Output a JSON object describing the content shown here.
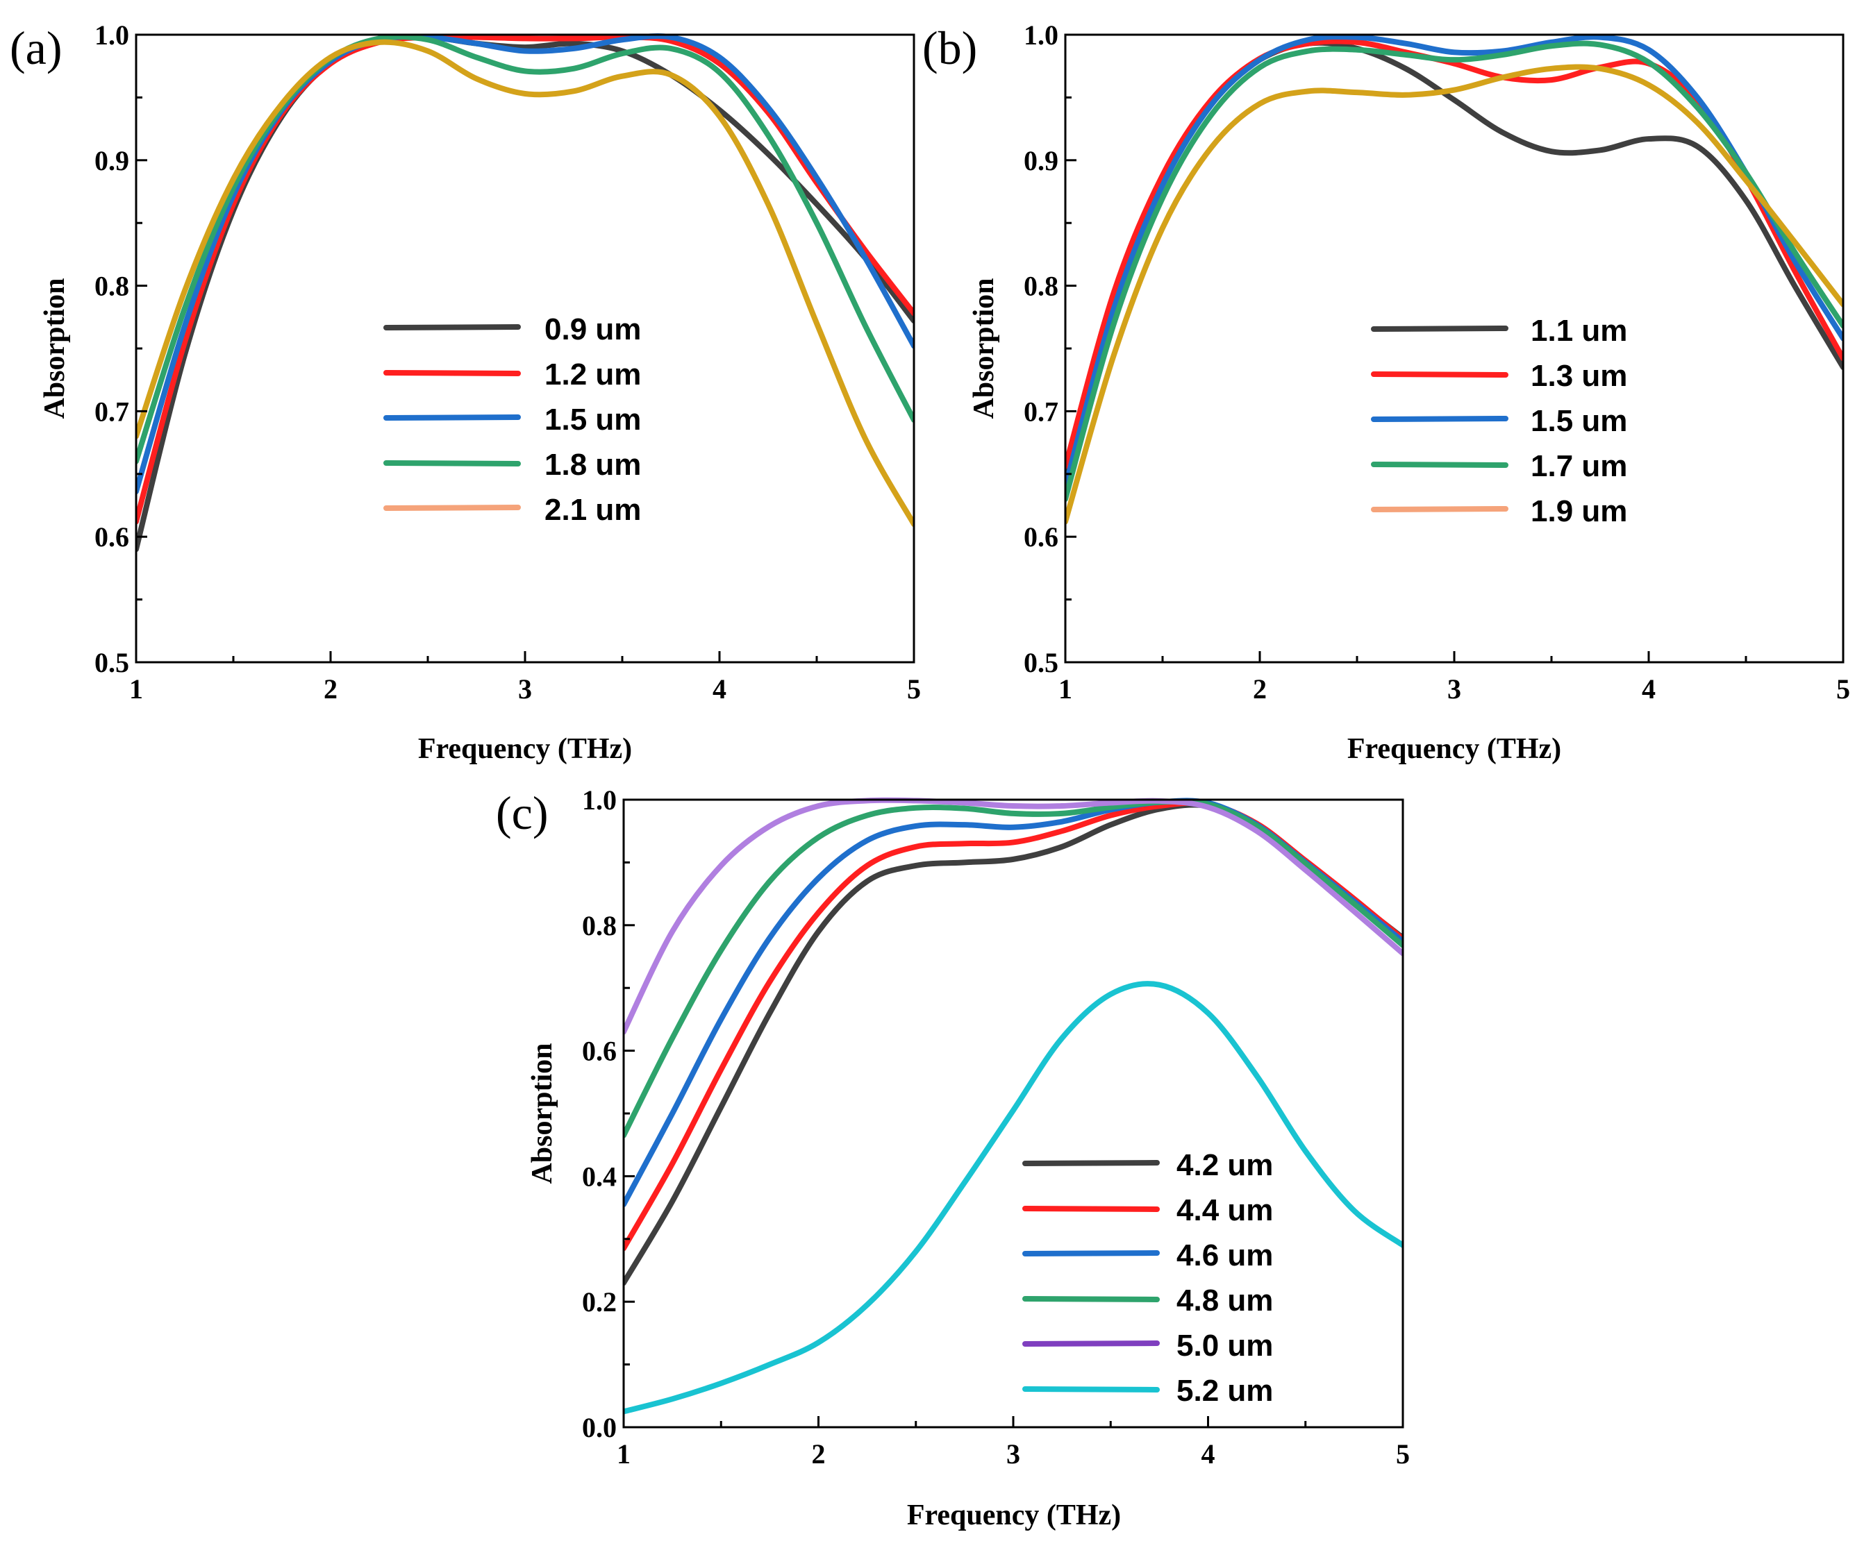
{
  "chart_data": [
    {
      "type": "line",
      "panel_label": "(a)",
      "xlabel": "Frequency (THz)",
      "ylabel": "Absorption",
      "xlim": [
        1,
        5
      ],
      "ylim": [
        0.5,
        1.0
      ],
      "xticks": [
        "1",
        "2",
        "3",
        "4",
        "5"
      ],
      "yticks": [
        "0.5",
        "0.6",
        "0.7",
        "0.8",
        "0.9",
        "1.0"
      ],
      "legend_position": "center",
      "series": [
        {
          "name": "0.9 um",
          "color": "#3f3f3f",
          "x": [
            1.0,
            1.25,
            1.5,
            1.75,
            2.0,
            2.25,
            2.5,
            2.75,
            3.0,
            3.25,
            3.5,
            3.75,
            4.0,
            4.25,
            4.5,
            4.75,
            5.0
          ],
          "y": [
            0.59,
            0.745,
            0.86,
            0.935,
            0.978,
            0.995,
            0.998,
            0.993,
            0.99,
            0.993,
            0.987,
            0.968,
            0.94,
            0.905,
            0.865,
            0.822,
            0.772
          ]
        },
        {
          "name": "1.2 um",
          "color": "#ff1f1f",
          "x": [
            1.0,
            1.25,
            1.5,
            1.75,
            2.0,
            2.25,
            2.5,
            2.75,
            3.0,
            3.25,
            3.5,
            3.75,
            4.0,
            4.25,
            4.5,
            4.75,
            5.0
          ],
          "y": [
            0.612,
            0.755,
            0.865,
            0.937,
            0.977,
            0.994,
            0.998,
            0.998,
            0.997,
            0.997,
            0.998,
            0.995,
            0.977,
            0.938,
            0.882,
            0.828,
            0.778
          ]
        },
        {
          "name": "1.5 um",
          "color": "#1f6fcc",
          "x": [
            1.0,
            1.25,
            1.5,
            1.75,
            2.0,
            2.25,
            2.5,
            2.75,
            3.0,
            3.25,
            3.5,
            3.75,
            4.0,
            4.25,
            4.5,
            4.75,
            5.0
          ],
          "y": [
            0.636,
            0.768,
            0.872,
            0.94,
            0.979,
            0.996,
            0.998,
            0.993,
            0.987,
            0.989,
            0.996,
            0.998,
            0.982,
            0.942,
            0.886,
            0.822,
            0.752
          ]
        },
        {
          "name": "1.8 um",
          "color": "#2ea36c",
          "x": [
            1.0,
            1.25,
            1.5,
            1.75,
            2.0,
            2.25,
            2.5,
            2.75,
            3.0,
            3.25,
            3.5,
            3.75,
            4.0,
            4.25,
            4.5,
            4.75,
            5.0
          ],
          "y": [
            0.66,
            0.782,
            0.878,
            0.942,
            0.981,
            0.997,
            0.996,
            0.982,
            0.971,
            0.973,
            0.985,
            0.989,
            0.97,
            0.92,
            0.85,
            0.768,
            0.693
          ]
        },
        {
          "name": "2.1 um",
          "color": "#f5a37a",
          "x": [
            1.0,
            1.25,
            1.5,
            1.75,
            2.0,
            2.25,
            2.5,
            2.75,
            3.0,
            3.25,
            3.5,
            3.75,
            4.0,
            4.25,
            4.5,
            4.75,
            5.0
          ],
          "y": [
            0.68,
            0.796,
            0.885,
            0.945,
            0.982,
            0.994,
            0.987,
            0.965,
            0.953,
            0.955,
            0.967,
            0.968,
            0.935,
            0.865,
            0.77,
            0.678,
            0.61
          ]
        }
      ],
      "visible_line_override": {
        "2.1 um": "#d4a21a"
      }
    },
    {
      "type": "line",
      "panel_label": "(b)",
      "xlabel": "Frequency (THz)",
      "ylabel": "Absorption",
      "xlim": [
        1,
        5
      ],
      "ylim": [
        0.5,
        1.0
      ],
      "xticks": [
        "1",
        "2",
        "3",
        "4",
        "5"
      ],
      "yticks": [
        "0.5",
        "0.6",
        "0.7",
        "0.8",
        "0.9",
        "1.0"
      ],
      "legend_position": "center-right",
      "series": [
        {
          "name": "1.1 um",
          "color": "#3f3f3f",
          "x": [
            1.0,
            1.25,
            1.5,
            1.75,
            2.0,
            2.25,
            2.5,
            2.75,
            3.0,
            3.25,
            3.5,
            3.75,
            4.0,
            4.25,
            4.5,
            4.75,
            5.0
          ],
          "y": [
            0.648,
            0.79,
            0.885,
            0.947,
            0.98,
            0.993,
            0.989,
            0.973,
            0.948,
            0.922,
            0.907,
            0.908,
            0.917,
            0.911,
            0.868,
            0.8,
            0.735
          ]
        },
        {
          "name": "1.3 um",
          "color": "#ff1f1f",
          "x": [
            1.0,
            1.25,
            1.5,
            1.75,
            2.0,
            2.25,
            2.5,
            2.75,
            3.0,
            3.25,
            3.5,
            3.75,
            4.0,
            4.25,
            4.5,
            4.75,
            5.0
          ],
          "y": [
            0.656,
            0.795,
            0.888,
            0.948,
            0.981,
            0.993,
            0.994,
            0.986,
            0.977,
            0.966,
            0.964,
            0.974,
            0.977,
            0.948,
            0.886,
            0.812,
            0.742
          ]
        },
        {
          "name": "1.5 um",
          "color": "#1f6fcc",
          "x": [
            1.0,
            1.25,
            1.5,
            1.75,
            2.0,
            2.25,
            2.5,
            2.75,
            3.0,
            3.25,
            3.5,
            3.75,
            4.0,
            4.25,
            4.5,
            4.75,
            5.0
          ],
          "y": [
            0.64,
            0.782,
            0.88,
            0.944,
            0.98,
            0.996,
            0.998,
            0.993,
            0.986,
            0.987,
            0.994,
            0.998,
            0.988,
            0.95,
            0.89,
            0.82,
            0.758
          ]
        },
        {
          "name": "1.7 um",
          "color": "#2ea36c",
          "x": [
            1.0,
            1.25,
            1.5,
            1.75,
            2.0,
            2.25,
            2.5,
            2.75,
            3.0,
            3.25,
            3.5,
            3.75,
            4.0,
            4.25,
            4.5,
            4.75,
            5.0
          ],
          "y": [
            0.63,
            0.77,
            0.87,
            0.936,
            0.974,
            0.987,
            0.988,
            0.984,
            0.98,
            0.984,
            0.991,
            0.992,
            0.978,
            0.942,
            0.89,
            0.827,
            0.768
          ]
        },
        {
          "name": "1.9 um",
          "color": "#f5a37a",
          "x": [
            1.0,
            1.25,
            1.5,
            1.75,
            2.0,
            2.25,
            2.5,
            2.75,
            3.0,
            3.25,
            3.5,
            3.75,
            4.0,
            4.25,
            4.5,
            4.75,
            5.0
          ],
          "y": [
            0.612,
            0.745,
            0.846,
            0.91,
            0.945,
            0.955,
            0.954,
            0.952,
            0.956,
            0.966,
            0.973,
            0.973,
            0.96,
            0.93,
            0.884,
            0.835,
            0.785
          ]
        }
      ],
      "visible_line_override": {
        "1.9 um": "#d4a21a"
      }
    },
    {
      "type": "line",
      "panel_label": "(c)",
      "xlabel": "Frequency (THz)",
      "ylabel": "Absorption",
      "xlim": [
        1,
        5
      ],
      "ylim": [
        0.0,
        1.0
      ],
      "xticks": [
        "1",
        "2",
        "3",
        "4",
        "5"
      ],
      "yticks": [
        "0.0",
        "0.2",
        "0.4",
        "0.6",
        "0.8",
        "1.0"
      ],
      "legend_position": "bottom-right",
      "series": [
        {
          "name": "4.2 um",
          "color": "#3f3f3f",
          "x": [
            1.0,
            1.25,
            1.5,
            1.75,
            2.0,
            2.25,
            2.5,
            2.75,
            3.0,
            3.25,
            3.5,
            3.75,
            4.0,
            4.25,
            4.5,
            4.75,
            5.0
          ],
          "y": [
            0.23,
            0.36,
            0.51,
            0.66,
            0.79,
            0.87,
            0.895,
            0.9,
            0.905,
            0.925,
            0.96,
            0.985,
            0.99,
            0.96,
            0.9,
            0.84,
            0.78
          ]
        },
        {
          "name": "4.4 um",
          "color": "#ff1f1f",
          "x": [
            1.0,
            1.25,
            1.5,
            1.75,
            2.0,
            2.25,
            2.5,
            2.75,
            3.0,
            3.25,
            3.5,
            3.75,
            4.0,
            4.25,
            4.5,
            4.75,
            5.0
          ],
          "y": [
            0.285,
            0.42,
            0.57,
            0.71,
            0.82,
            0.895,
            0.925,
            0.93,
            0.932,
            0.95,
            0.975,
            0.99,
            0.993,
            0.962,
            0.903,
            0.842,
            0.778
          ]
        },
        {
          "name": "4.6 um",
          "color": "#1f6fcc",
          "x": [
            1.0,
            1.25,
            1.5,
            1.75,
            2.0,
            2.25,
            2.5,
            2.75,
            3.0,
            3.25,
            3.5,
            3.75,
            4.0,
            4.25,
            4.5,
            4.75,
            5.0
          ],
          "y": [
            0.355,
            0.5,
            0.65,
            0.78,
            0.875,
            0.935,
            0.958,
            0.96,
            0.956,
            0.965,
            0.984,
            0.996,
            0.995,
            0.96,
            0.9,
            0.838,
            0.774
          ]
        },
        {
          "name": "4.8 um",
          "color": "#2ea36c",
          "x": [
            1.0,
            1.25,
            1.5,
            1.75,
            2.0,
            2.25,
            2.5,
            2.75,
            3.0,
            3.25,
            3.5,
            3.75,
            4.0,
            4.25,
            4.5,
            4.75,
            5.0
          ],
          "y": [
            0.465,
            0.62,
            0.76,
            0.87,
            0.94,
            0.975,
            0.987,
            0.986,
            0.978,
            0.978,
            0.988,
            0.996,
            0.993,
            0.958,
            0.898,
            0.834,
            0.768
          ]
        },
        {
          "name": "5.0 um",
          "color": "#7f3fbf",
          "x": [
            1.0,
            1.25,
            1.5,
            1.75,
            2.0,
            2.25,
            2.5,
            2.75,
            3.0,
            3.25,
            3.5,
            3.75,
            4.0,
            4.25,
            4.5,
            4.75,
            5.0
          ],
          "y": [
            0.63,
            0.79,
            0.895,
            0.958,
            0.99,
            1.0,
            0.999,
            0.995,
            0.99,
            0.99,
            0.995,
            0.998,
            0.988,
            0.95,
            0.888,
            0.822,
            0.755
          ]
        },
        {
          "name": "5.2 um",
          "color": "#19c3d1",
          "x": [
            1.0,
            1.25,
            1.5,
            1.75,
            2.0,
            2.25,
            2.5,
            2.75,
            3.0,
            3.25,
            3.5,
            3.75,
            4.0,
            4.25,
            4.5,
            4.75,
            5.0
          ],
          "y": [
            0.025,
            0.045,
            0.07,
            0.1,
            0.135,
            0.195,
            0.28,
            0.39,
            0.505,
            0.62,
            0.69,
            0.705,
            0.66,
            0.56,
            0.44,
            0.345,
            0.29
          ]
        }
      ],
      "visible_line_override": {
        "5.0 um": "#b07fe0"
      }
    }
  ]
}
